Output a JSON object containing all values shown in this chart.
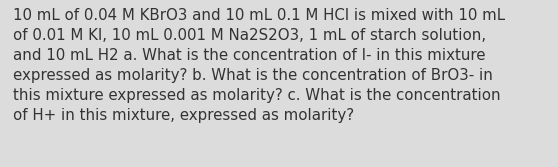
{
  "text": "10 mL of 0.04 M KBrO3 and 10 mL 0.1 M HCl is mixed with 10 mL\nof 0.01 M KI, 10 mL 0.001 M Na2S2O3, 1 mL of starch solution,\nand 10 mL H2 a. What is the concentration of I- in this mixture\nexpressed as molarity? b. What is the concentration of BrO3- in\nthis mixture expressed as molarity? c. What is the concentration\nof H+ in this mixture, expressed as molarity?",
  "background_color": "#dcdcdc",
  "text_color": "#333333",
  "font_size": 10.8,
  "fig_width": 5.58,
  "fig_height": 1.67,
  "dpi": 100
}
